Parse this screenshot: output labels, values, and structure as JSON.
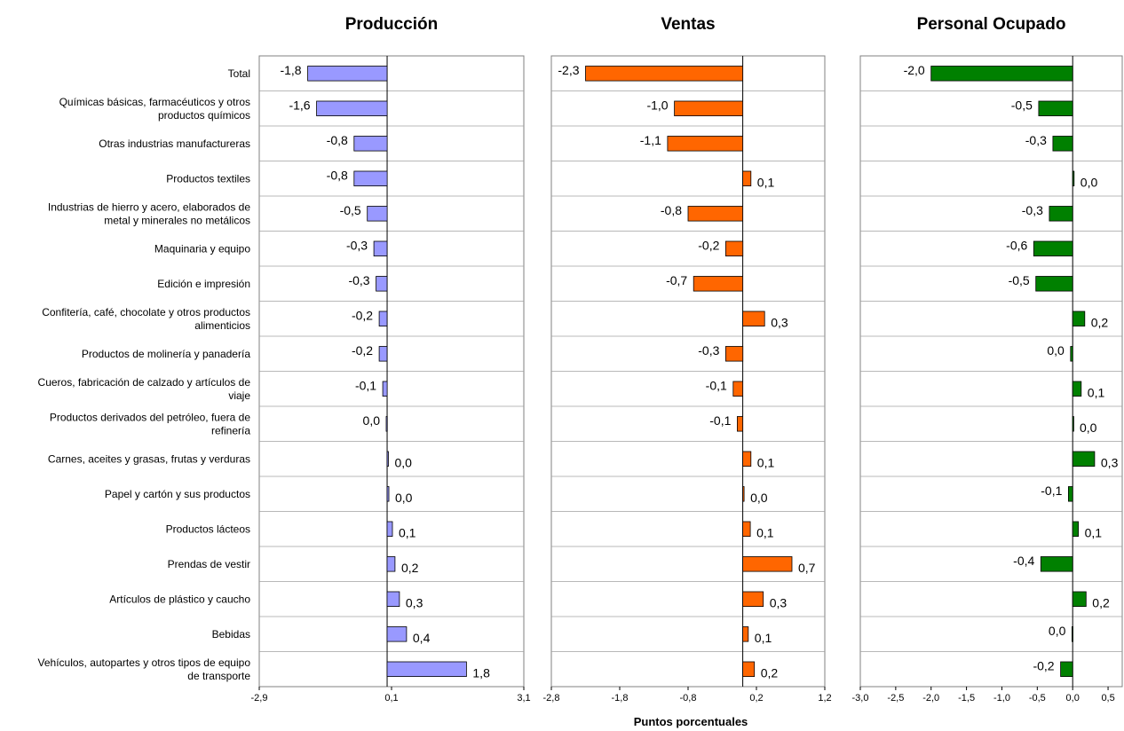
{
  "chart_data": {
    "type": "bar",
    "orientation": "horizontal",
    "categories": [
      "Total",
      "Químicas básicas, farmacéuticos y otros productos químicos",
      "Otras industrias manufactureras",
      "Productos textiles",
      "Industrias de hierro y acero, elaborados de metal y minerales no metálicos",
      "Maquinaria y equipo",
      "Edición e impresión",
      "Confitería, café, chocolate y otros productos alimenticios",
      "Productos de molinería y panadería",
      "Cueros, fabricación de calzado y artículos de viaje",
      "Productos derivados del petróleo, fuera de refinería",
      "Carnes, aceites y grasas, frutas y verduras",
      "Papel y cartón y sus productos",
      "Productos lácteos",
      "Prendas de vestir",
      "Artículos de plástico y caucho",
      "Bebidas",
      "Vehículos, autopartes y otros tipos de equipo de transporte"
    ],
    "category_lines": [
      [
        "Total"
      ],
      [
        "Químicas básicas, farmacéuticos y otros",
        "productos químicos"
      ],
      [
        "Otras industrias manufactureras"
      ],
      [
        "Productos textiles"
      ],
      [
        "Industrias de hierro y acero, elaborados de",
        "metal y minerales no metálicos"
      ],
      [
        "Maquinaria y equipo"
      ],
      [
        "Edición e impresión"
      ],
      [
        "Confitería, café, chocolate y otros productos",
        "alimenticios"
      ],
      [
        "Productos de molinería y panadería"
      ],
      [
        "Cueros, fabricación de calzado y artículos de",
        "viaje"
      ],
      [
        "Productos derivados del petróleo, fuera de",
        "refinería"
      ],
      [
        "Carnes, aceites y grasas, frutas y verduras"
      ],
      [
        "Papel y cartón y sus productos"
      ],
      [
        "Productos lácteos"
      ],
      [
        "Prendas de vestir"
      ],
      [
        "Artículos de plástico y caucho"
      ],
      [
        "Bebidas"
      ],
      [
        "Vehículos, autopartes y otros tipos de equipo",
        "de transporte"
      ]
    ],
    "xlabel": "Puntos porcentuales",
    "grid_horizontal": true,
    "panels": [
      {
        "title": "Producción",
        "color": "#9999ff",
        "xlim": [
          -2.9,
          3.1
        ],
        "ticks": [
          -2.9,
          0.1,
          3.1
        ],
        "tick_labels": [
          "-2,9",
          "0,1",
          "3,1"
        ],
        "values": [
          -1.8,
          -1.6,
          -0.75,
          -0.75,
          -0.45,
          -0.3,
          -0.25,
          -0.18,
          -0.18,
          -0.1,
          -0.02,
          0.03,
          0.04,
          0.12,
          0.18,
          0.28,
          0.44,
          1.8
        ],
        "value_labels": [
          "-1,8",
          "-1,6",
          "-0,8",
          "-0,8",
          "-0,5",
          "-0,3",
          "-0,3",
          "-0,2",
          "-0,2",
          "-0,1",
          "0,0",
          "0,0",
          "0,0",
          "0,1",
          "0,2",
          "0,3",
          "0,4",
          "1,8"
        ]
      },
      {
        "title": "Ventas",
        "color": "#ff6600",
        "xlim": [
          -2.8,
          1.2
        ],
        "ticks": [
          -2.8,
          -1.8,
          -0.8,
          0.2,
          1.2
        ],
        "tick_labels": [
          "-2,8",
          "-1,8",
          "-0,8",
          "0,2",
          "1,2"
        ],
        "values": [
          -2.3,
          -1.0,
          -1.1,
          0.12,
          -0.8,
          -0.25,
          -0.72,
          0.32,
          -0.25,
          -0.14,
          -0.08,
          0.12,
          0.02,
          0.11,
          0.72,
          0.3,
          0.08,
          0.17
        ],
        "value_labels": [
          "-2,3",
          "-1,0",
          "-1,1",
          "0,1",
          "-0,8",
          "-0,2",
          "-0,7",
          "0,3",
          "-0,3",
          "-0,1",
          "-0,1",
          "0,1",
          "0,0",
          "0,1",
          "0,7",
          "0,3",
          "0,1",
          "0,2"
        ]
      },
      {
        "title": "Personal Ocupado",
        "color": "#008000",
        "xlim": [
          -3.0,
          0.7
        ],
        "ticks": [
          -3.0,
          -2.5,
          -2.0,
          -1.5,
          -1.0,
          -0.5,
          0.0,
          0.5
        ],
        "tick_labels": [
          "-3,0",
          "-2,5",
          "-2,0",
          "-1,5",
          "-1,0",
          "-0,5",
          "0,0",
          "0,5"
        ],
        "values": [
          -2.0,
          -0.48,
          -0.28,
          0.02,
          -0.33,
          -0.55,
          -0.52,
          0.17,
          -0.03,
          0.12,
          0.01,
          0.31,
          -0.06,
          0.08,
          -0.45,
          0.19,
          -0.01,
          -0.17
        ],
        "value_labels": [
          "-2,0",
          "-0,5",
          "-0,3",
          "0,0",
          "-0,3",
          "-0,6",
          "-0,5",
          "0,2",
          "0,0",
          "0,1",
          "0,0",
          "0,3",
          "-0,1",
          "0,1",
          "-0,4",
          "0,2",
          "0,0",
          "-0,2"
        ]
      }
    ]
  }
}
